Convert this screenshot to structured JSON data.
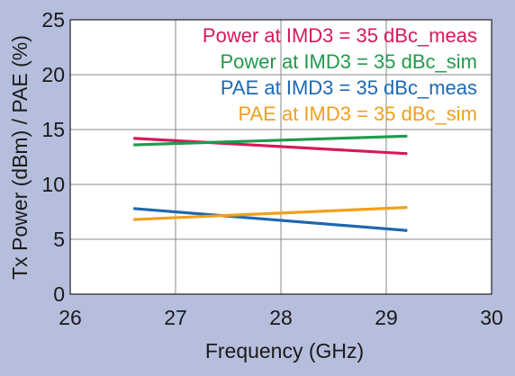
{
  "chart_data": {
    "type": "line",
    "title": "",
    "xlabel": "Frequency (GHz)",
    "ylabel": "Tx Power (dBm) / PAE (%)",
    "xlim": [
      26,
      30
    ],
    "ylim": [
      0,
      25
    ],
    "xticks": [
      26,
      27,
      28,
      29,
      30
    ],
    "yticks": [
      0,
      5,
      10,
      15,
      20,
      25
    ],
    "grid": true,
    "legend_position": "top-right",
    "series": [
      {
        "name": "Power at IMD3 = 35 dBc_meas",
        "color": "#d6195c",
        "x": [
          26.6,
          29.2
        ],
        "y": [
          14.2,
          12.8
        ]
      },
      {
        "name": "Power at IMD3 = 35 dBc_sim",
        "color": "#1f9b4a",
        "x": [
          26.6,
          29.2
        ],
        "y": [
          13.6,
          14.4
        ]
      },
      {
        "name": "PAE at IMD3 = 35 dBc_meas",
        "color": "#1e68b0",
        "x": [
          26.6,
          29.2
        ],
        "y": [
          7.8,
          5.8
        ]
      },
      {
        "name": "PAE at IMD3 = 35 dBc_sim",
        "color": "#f0a01c",
        "x": [
          26.6,
          29.2
        ],
        "y": [
          6.8,
          7.9
        ]
      }
    ]
  }
}
